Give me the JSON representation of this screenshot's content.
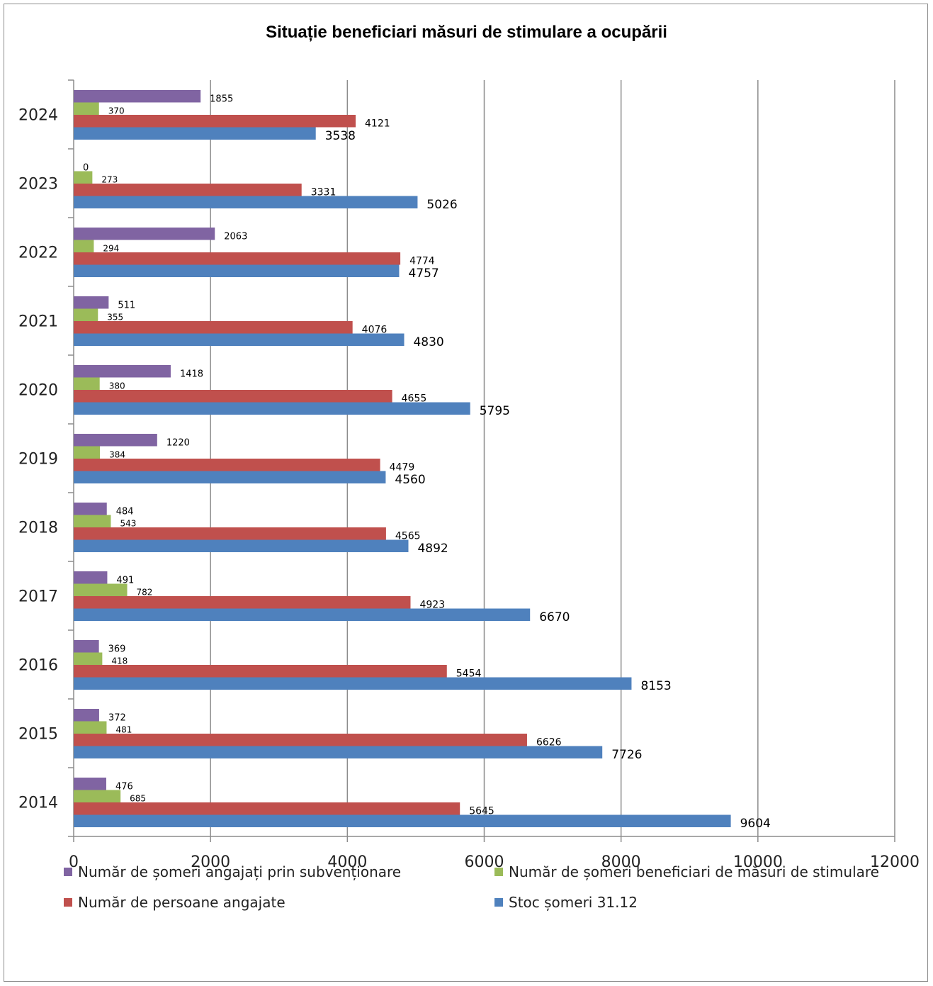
{
  "chart_data": {
    "type": "bar",
    "orientation": "horizontal",
    "title": "Situație beneficiari măsuri de stimulare a ocupării",
    "categories": [
      "2014",
      "2015",
      "2016",
      "2017",
      "2018",
      "2019",
      "2020",
      "2021",
      "2022",
      "2023",
      "2024"
    ],
    "series": [
      {
        "name": "Număr de șomeri angajați prin subvenționare",
        "color": "#8064a2",
        "values": [
          476,
          372,
          369,
          491,
          484,
          1220,
          1418,
          511,
          2063,
          0,
          1855
        ]
      },
      {
        "name": "Număr de șomeri beneficiari de măsuri de stimulare",
        "color": "#9bbb59",
        "values": [
          685,
          481,
          418,
          782,
          543,
          384,
          380,
          355,
          294,
          273,
          370
        ]
      },
      {
        "name": "Număr de persoane angajate",
        "color": "#c0504d",
        "values": [
          5645,
          6626,
          5454,
          4923,
          4565,
          4479,
          4655,
          4076,
          4774,
          3331,
          4121
        ]
      },
      {
        "name": "Stoc șomeri 31.12",
        "color": "#4f81bd",
        "values": [
          9604,
          7726,
          8153,
          6670,
          4892,
          4560,
          5795,
          4830,
          4757,
          5026,
          3538
        ]
      }
    ],
    "xlim": [
      0,
      12000
    ],
    "xticks": [
      "0",
      "2000",
      "4000",
      "6000",
      "8000",
      "10000",
      "12000"
    ],
    "grid": "vertical",
    "legend_position": "bottom"
  }
}
